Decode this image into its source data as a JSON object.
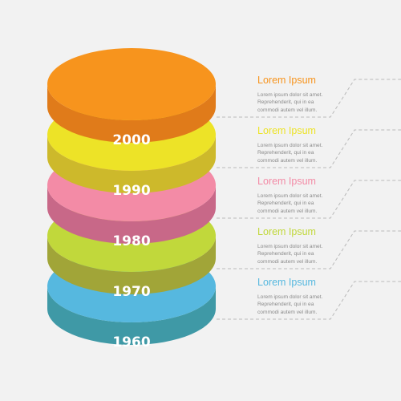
{
  "colors": {
    "background": "#f2f2f2",
    "connector": "#b9b9b9"
  },
  "layers": [
    {
      "year": "2000",
      "top_color": "#f7941d",
      "side_color": "#e07b1a",
      "title": "Lorem Ipsum",
      "body": [
        "Lorem ipsum dolor sit amet.",
        "Reprehenderit, qui in ea",
        "commodi autem vel illum."
      ]
    },
    {
      "year": "1990",
      "top_color": "#ede327",
      "side_color": "#cdb92b",
      "title": "Lorem Ipsum",
      "body": [
        "Lorem ipsum dolor sit amet.",
        "Reprehenderit, qui in ea",
        "commodi autem vel illum."
      ]
    },
    {
      "year": "1980",
      "top_color": "#f38ba6",
      "side_color": "#c86888",
      "title": "Lorem Ipsum",
      "body": [
        "Lorem ipsum dolor sit amet.",
        "Reprehenderit, qui in ea",
        "commodi autem vel illum."
      ]
    },
    {
      "year": "1970",
      "top_color": "#c1d83b",
      "side_color": "#a1a538",
      "title": "Lorem Ipsum",
      "body": [
        "Lorem ipsum dolor sit amet.",
        "Reprehenderit, qui in ea",
        "commodi autem vel illum."
      ]
    },
    {
      "year": "1960",
      "top_color": "#56b8df",
      "side_color": "#3f99a6",
      "title": "Lorem Ipsum",
      "body": [
        "Lorem ipsum dolor sit amet.",
        "Reprehenderit, qui in ea",
        "commodi autem vel illum."
      ]
    }
  ]
}
